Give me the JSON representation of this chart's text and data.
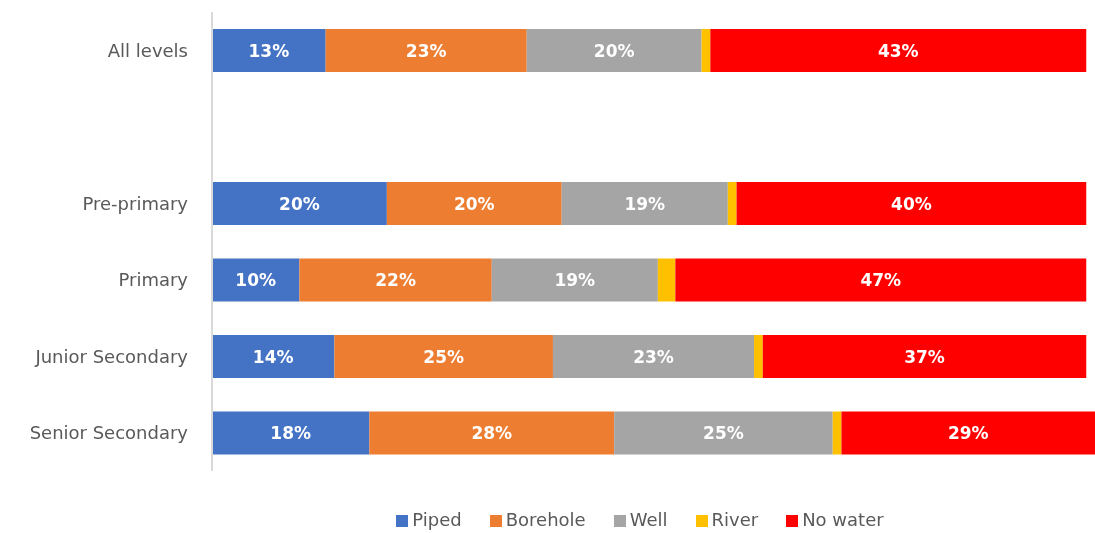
{
  "chart_data": {
    "type": "bar",
    "orientation": "horizontal",
    "stacked": true,
    "legend": "bottom",
    "categories": [
      "All levels",
      null,
      "Pre-primary",
      "Primary",
      "Junior Secondary",
      "Senior Secondary"
    ],
    "series": [
      {
        "name": "Piped",
        "color": "#4472c4",
        "values": [
          13,
          null,
          20,
          10,
          14,
          18
        ],
        "value_labels": [
          "13%",
          null,
          "20%",
          "10%",
          "14%",
          "18%"
        ]
      },
      {
        "name": "Borehole",
        "color": "#ed7d31",
        "values": [
          23,
          null,
          20,
          22,
          25,
          28
        ],
        "value_labels": [
          "23%",
          null,
          "20%",
          "22%",
          "25%",
          "28%"
        ]
      },
      {
        "name": "Well",
        "color": "#a5a5a5",
        "values": [
          20,
          null,
          19,
          19,
          23,
          25
        ],
        "value_labels": [
          "20%",
          null,
          "19%",
          "19%",
          "23%",
          "25%"
        ]
      },
      {
        "name": "River",
        "color": "#ffc000",
        "values": [
          1,
          null,
          1,
          2,
          1,
          1
        ]
      },
      {
        "name": "No water",
        "color": "#ff0000",
        "values": [
          43,
          null,
          40,
          47,
          37,
          29
        ],
        "value_labels": [
          "43%",
          null,
          "40%",
          "47%",
          "37%",
          "29%"
        ]
      }
    ]
  }
}
